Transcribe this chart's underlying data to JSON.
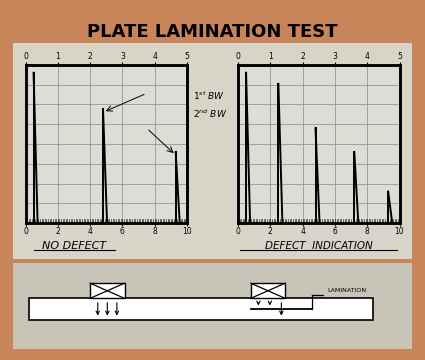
{
  "title": "PLATE LAMINATION TEST",
  "bg_outer": "#c8855a",
  "bg_top": "#d8d5c8",
  "bg_bot": "#c8c5b8",
  "left_label": "NO DEFECT",
  "right_label": "DEFECT  INDICATION",
  "lamination_label": "LAMINATION"
}
